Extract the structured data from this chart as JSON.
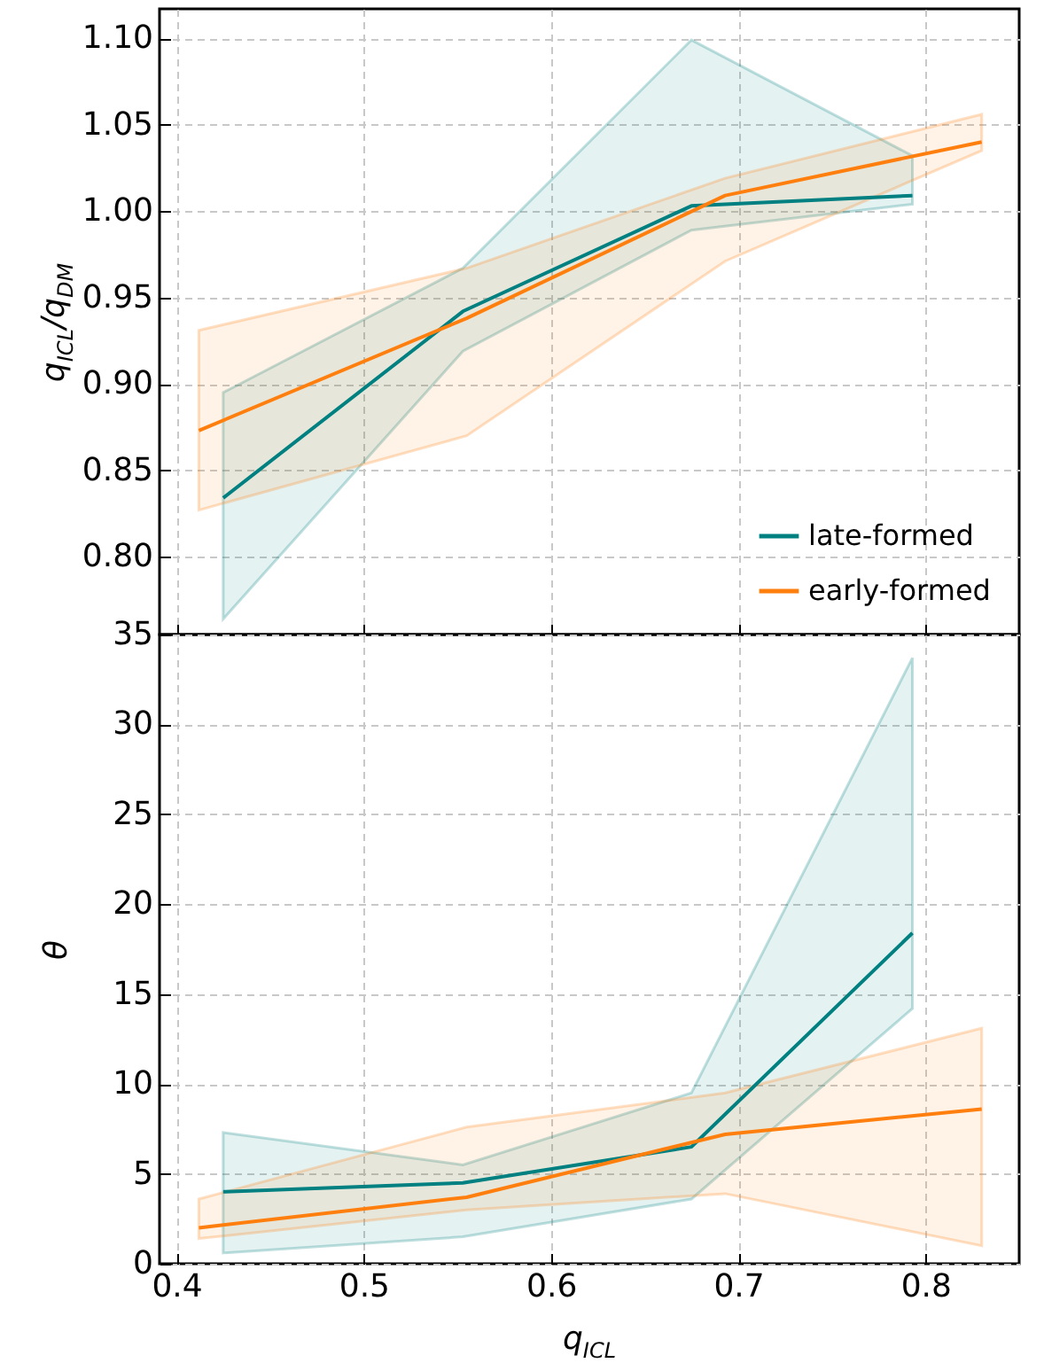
{
  "chart_data": [
    {
      "type": "line",
      "ylabel": "q$_{ICL}$/q$_{DM}$",
      "xlim": [
        0.391,
        0.85
      ],
      "xticks": [
        0.4,
        0.5,
        0.6,
        0.7,
        0.8
      ],
      "ylim": [
        0.755,
        1.117
      ],
      "yticks": [
        {
          "value": 0.8,
          "label": "0.80"
        },
        {
          "value": 0.85,
          "label": "0.85"
        },
        {
          "value": 0.9,
          "label": "0.90"
        },
        {
          "value": 0.95,
          "label": "0.95"
        },
        {
          "value": 1.0,
          "label": "1.00"
        },
        {
          "value": 1.05,
          "label": "1.05"
        },
        {
          "value": 1.1,
          "label": "1.10"
        }
      ],
      "tick_labels": "y",
      "grid": true,
      "legend": "bottom right",
      "series": [
        {
          "name": "late-formed",
          "color": "#008080",
          "x": [
            0.425,
            0.553,
            0.675,
            0.793
          ],
          "values": [
            0.834,
            0.942,
            1.003,
            1.009
          ],
          "lower": [
            0.764,
            0.919,
            0.989,
            1.004
          ],
          "upper": [
            0.895,
            0.967,
            1.099,
            1.032
          ]
        },
        {
          "name": "early-formed",
          "color": "#ff7f0e",
          "x": [
            0.412,
            0.555,
            0.693,
            0.83
          ],
          "values": [
            0.873,
            0.938,
            1.009,
            1.04
          ],
          "lower": [
            0.827,
            0.87,
            0.971,
            1.035
          ],
          "upper": [
            0.931,
            0.967,
            1.019,
            1.056
          ]
        }
      ]
    },
    {
      "type": "line",
      "xlabel": "q$_{ICL}$",
      "ylabel": "θ",
      "xlim": [
        0.391,
        0.85
      ],
      "xticks": [
        0.4,
        0.5,
        0.6,
        0.7,
        0.8
      ],
      "ylim": [
        0,
        35
      ],
      "yticks": [
        0,
        5,
        10,
        15,
        20,
        25,
        30,
        35
      ],
      "grid": true,
      "series": [
        {
          "color": "#008080",
          "x": [
            0.425,
            0.553,
            0.675,
            0.793
          ],
          "values": [
            4.0,
            4.5,
            6.5,
            18.4
          ],
          "lower": [
            0.6,
            1.5,
            3.6,
            14.2
          ],
          "upper": [
            7.3,
            5.5,
            9.5,
            33.7
          ]
        },
        {
          "color": "#ff7f0e",
          "x": [
            0.412,
            0.555,
            0.693,
            0.83
          ],
          "values": [
            2.0,
            3.7,
            7.2,
            8.6
          ],
          "lower": [
            1.4,
            3.0,
            3.9,
            1.0
          ],
          "upper": [
            3.6,
            7.6,
            9.5,
            13.1
          ]
        }
      ]
    }
  ]
}
